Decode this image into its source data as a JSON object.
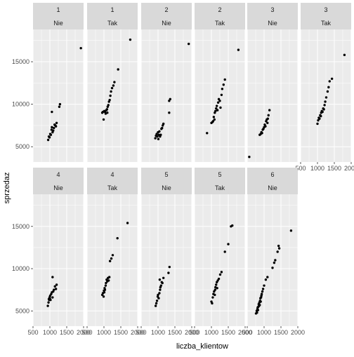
{
  "chart_data": {
    "type": "scatter",
    "xlabel": "liczba_klientow",
    "ylabel": "sprzedaz",
    "xlim": [
      500,
      2000
    ],
    "ylim": [
      3200,
      18800
    ],
    "x_ticks": [
      500,
      1000,
      1500,
      2000
    ],
    "y_ticks": [
      5000,
      10000,
      15000
    ],
    "colors": {
      "panel_background": "#ebebeb",
      "strip_background": "#d9d9d9",
      "gridline": "#ffffff",
      "point": "#000000"
    },
    "facet_rows": [
      "row1",
      "row2"
    ],
    "facet_columns": 6,
    "panels": [
      {
        "label_top": "1",
        "label_bottom": "Nie",
        "row": 0,
        "col": 0,
        "x_axis": false,
        "points": [
          [
            950,
            5800
          ],
          [
            970,
            6200
          ],
          [
            990,
            6100
          ],
          [
            1010,
            6500
          ],
          [
            1030,
            6400
          ],
          [
            1050,
            7000
          ],
          [
            1060,
            7300
          ],
          [
            1080,
            6700
          ],
          [
            1100,
            6900
          ],
          [
            1120,
            7200
          ],
          [
            1140,
            7600
          ],
          [
            1160,
            7500
          ],
          [
            1180,
            7400
          ],
          [
            1200,
            7800
          ],
          [
            1060,
            9100
          ],
          [
            1280,
            9700
          ],
          [
            1300,
            10000
          ],
          [
            1920,
            16600
          ]
        ]
      },
      {
        "label_top": "1",
        "label_bottom": "Tak",
        "row": 0,
        "col": 1,
        "x_axis": false,
        "points": [
          [
            950,
            9000
          ],
          [
            970,
            9100
          ],
          [
            990,
            8200
          ],
          [
            1010,
            9200
          ],
          [
            1030,
            9100
          ],
          [
            1050,
            8900
          ],
          [
            1070,
            9300
          ],
          [
            1090,
            9400
          ],
          [
            1100,
            9000
          ],
          [
            1110,
            9700
          ],
          [
            1130,
            9900
          ],
          [
            1150,
            10300
          ],
          [
            1170,
            10500
          ],
          [
            1190,
            11000
          ],
          [
            1210,
            11500
          ],
          [
            1240,
            11900
          ],
          [
            1280,
            12200
          ],
          [
            1310,
            12600
          ],
          [
            1420,
            14100
          ],
          [
            1780,
            17600
          ]
        ]
      },
      {
        "label_top": "2",
        "label_bottom": "Nie",
        "row": 0,
        "col": 2,
        "x_axis": false,
        "points": [
          [
            920,
            6000
          ],
          [
            940,
            6300
          ],
          [
            960,
            6500
          ],
          [
            980,
            6200
          ],
          [
            1000,
            6700
          ],
          [
            1010,
            5900
          ],
          [
            1020,
            6400
          ],
          [
            1040,
            6800
          ],
          [
            1060,
            6200
          ],
          [
            1080,
            6400
          ],
          [
            1100,
            7100
          ],
          [
            1120,
            7200
          ],
          [
            1140,
            7500
          ],
          [
            1160,
            7700
          ],
          [
            1330,
            9000
          ],
          [
            1330,
            10400
          ],
          [
            1360,
            10600
          ],
          [
            1910,
            17100
          ]
        ]
      },
      {
        "label_top": "2",
        "label_bottom": "Tak",
        "row": 0,
        "col": 3,
        "x_axis": false,
        "points": [
          [
            870,
            6600
          ],
          [
            1000,
            7800
          ],
          [
            1030,
            7900
          ],
          [
            1050,
            8000
          ],
          [
            1070,
            8500
          ],
          [
            1090,
            8200
          ],
          [
            1100,
            9000
          ],
          [
            1120,
            9200
          ],
          [
            1140,
            9500
          ],
          [
            1160,
            9800
          ],
          [
            1180,
            9300
          ],
          [
            1200,
            10200
          ],
          [
            1220,
            10600
          ],
          [
            1250,
            10400
          ],
          [
            1270,
            9600
          ],
          [
            1300,
            11100
          ],
          [
            1320,
            11800
          ],
          [
            1360,
            12300
          ],
          [
            1400,
            12900
          ],
          [
            1800,
            16400
          ]
        ]
      },
      {
        "label_top": "3",
        "label_bottom": "Nie",
        "row": 0,
        "col": 4,
        "x_axis": false,
        "points": [
          [
            560,
            3800
          ],
          [
            870,
            6400
          ],
          [
            900,
            6500
          ],
          [
            920,
            6700
          ],
          [
            940,
            6600
          ],
          [
            960,
            7000
          ],
          [
            980,
            7100
          ],
          [
            1000,
            7300
          ],
          [
            1020,
            7600
          ],
          [
            1040,
            7400
          ],
          [
            1060,
            8000
          ],
          [
            1080,
            8200
          ],
          [
            1100,
            7800
          ],
          [
            1110,
            8300
          ],
          [
            1130,
            8700
          ],
          [
            1160,
            9300
          ]
        ]
      },
      {
        "label_top": "3",
        "label_bottom": "Tak",
        "row": 0,
        "col": 5,
        "x_axis": true,
        "points": [
          [
            1000,
            7700
          ],
          [
            1020,
            8100
          ],
          [
            1040,
            8400
          ],
          [
            1060,
            8300
          ],
          [
            1080,
            8700
          ],
          [
            1100,
            8600
          ],
          [
            1110,
            9000
          ],
          [
            1130,
            9200
          ],
          [
            1150,
            9100
          ],
          [
            1170,
            9500
          ],
          [
            1190,
            9400
          ],
          [
            1210,
            9900
          ],
          [
            1230,
            10300
          ],
          [
            1260,
            10800
          ],
          [
            1300,
            11500
          ],
          [
            1330,
            12000
          ],
          [
            1360,
            12700
          ],
          [
            1430,
            13000
          ],
          [
            1800,
            15800
          ]
        ]
      },
      {
        "label_top": "4",
        "label_bottom": "Nie",
        "row": 1,
        "col": 0,
        "x_axis": true,
        "points": [
          [
            940,
            5600
          ],
          [
            960,
            6000
          ],
          [
            970,
            6400
          ],
          [
            980,
            6300
          ],
          [
            990,
            6600
          ],
          [
            1000,
            6500
          ],
          [
            1010,
            6800
          ],
          [
            1020,
            6300
          ],
          [
            1040,
            7000
          ],
          [
            1060,
            7200
          ],
          [
            1080,
            6600
          ],
          [
            1100,
            7300
          ],
          [
            1120,
            7500
          ],
          [
            1150,
            7900
          ],
          [
            1180,
            7600
          ],
          [
            1200,
            8100
          ],
          [
            1080,
            9000
          ]
        ]
      },
      {
        "label_top": "4",
        "label_bottom": "Tak",
        "row": 1,
        "col": 1,
        "x_axis": true,
        "points": [
          [
            950,
            6900
          ],
          [
            970,
            7100
          ],
          [
            990,
            6700
          ],
          [
            1000,
            7400
          ],
          [
            1010,
            7200
          ],
          [
            1020,
            7700
          ],
          [
            1030,
            7500
          ],
          [
            1050,
            8000
          ],
          [
            1060,
            8300
          ],
          [
            1080,
            8700
          ],
          [
            1100,
            8500
          ],
          [
            1120,
            8900
          ],
          [
            1140,
            8600
          ],
          [
            1160,
            9000
          ],
          [
            1180,
            10900
          ],
          [
            1220,
            11200
          ],
          [
            1260,
            11600
          ],
          [
            1400,
            13600
          ],
          [
            1700,
            15400
          ]
        ]
      },
      {
        "label_top": "5",
        "label_bottom": "Nie",
        "row": 1,
        "col": 2,
        "x_axis": true,
        "points": [
          [
            930,
            5600
          ],
          [
            950,
            5900
          ],
          [
            970,
            6200
          ],
          [
            990,
            6700
          ],
          [
            1000,
            6900
          ],
          [
            1020,
            6500
          ],
          [
            1040,
            7100
          ],
          [
            1060,
            7500
          ],
          [
            1070,
            7800
          ],
          [
            1090,
            8000
          ],
          [
            1110,
            8400
          ],
          [
            1130,
            8300
          ],
          [
            1160,
            8900
          ],
          [
            1050,
            8700
          ],
          [
            1310,
            9500
          ],
          [
            1340,
            10200
          ]
        ]
      },
      {
        "label_top": "5",
        "label_bottom": "Tak",
        "row": 1,
        "col": 3,
        "x_axis": true,
        "points": [
          [
            1000,
            6100
          ],
          [
            1020,
            5900
          ],
          [
            1040,
            6600
          ],
          [
            1060,
            7000
          ],
          [
            1080,
            7300
          ],
          [
            1100,
            6900
          ],
          [
            1110,
            7500
          ],
          [
            1120,
            7800
          ],
          [
            1140,
            8100
          ],
          [
            1160,
            8400
          ],
          [
            1170,
            7700
          ],
          [
            1190,
            8600
          ],
          [
            1220,
            8800
          ],
          [
            1260,
            9300
          ],
          [
            1300,
            9600
          ],
          [
            1400,
            12000
          ],
          [
            1500,
            12900
          ],
          [
            1580,
            15000
          ],
          [
            1620,
            15100
          ]
        ]
      },
      {
        "label_top": "6",
        "label_bottom": "Nie",
        "row": 1,
        "col": 4,
        "x_axis": true,
        "points": [
          [
            760,
            4700
          ],
          [
            780,
            5000
          ],
          [
            790,
            4800
          ],
          [
            800,
            5200
          ],
          [
            810,
            5400
          ],
          [
            820,
            5100
          ],
          [
            830,
            5500
          ],
          [
            840,
            5800
          ],
          [
            850,
            5600
          ],
          [
            860,
            6000
          ],
          [
            870,
            5700
          ],
          [
            880,
            6200
          ],
          [
            890,
            6500
          ],
          [
            900,
            6100
          ],
          [
            910,
            6600
          ],
          [
            920,
            6800
          ],
          [
            930,
            7000
          ],
          [
            950,
            7300
          ],
          [
            970,
            7600
          ],
          [
            1000,
            8000
          ],
          [
            1050,
            8700
          ],
          [
            1100,
            9000
          ],
          [
            1250,
            10100
          ],
          [
            1300,
            10700
          ],
          [
            1330,
            11000
          ],
          [
            1400,
            12000
          ],
          [
            1430,
            12700
          ],
          [
            1450,
            12400
          ],
          [
            1800,
            14500
          ]
        ]
      }
    ]
  }
}
